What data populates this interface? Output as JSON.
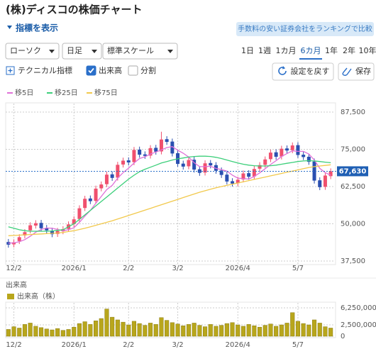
{
  "header": {
    "title": "(株)ディスコの株価チャート",
    "show_indicators": "指標を表示",
    "compare_button": "手数料の安い証券会社をランキングで比較"
  },
  "controls": {
    "dropdowns": [
      "ローソク",
      "日足",
      "標準スケール"
    ],
    "periods": [
      "1日",
      "1週",
      "1カ月",
      "6カ月",
      "1年",
      "2年",
      "10年"
    ],
    "selected_period": 3,
    "technical": "テクニカル指標",
    "checkboxes": [
      {
        "label": "出来高",
        "checked": true
      },
      {
        "label": "分割",
        "checked": false
      }
    ],
    "reset_button": "設定を戻す",
    "save_button": "保存"
  },
  "chart_data": [
    {
      "type": "candlestick",
      "categories": [
        null,
        "12/2",
        null,
        null,
        null,
        null,
        null,
        null,
        null,
        null,
        null,
        null,
        "2026/1",
        null,
        null,
        null,
        null,
        null,
        null,
        null,
        null,
        null,
        "2/2",
        null,
        null,
        null,
        null,
        null,
        null,
        null,
        null,
        "3/2",
        null,
        null,
        null,
        null,
        null,
        null,
        null,
        null,
        null,
        null,
        "2026/4",
        null,
        null,
        null,
        null,
        null,
        null,
        null,
        null,
        null,
        null,
        "5/7",
        null,
        null,
        null,
        null,
        null,
        null
      ],
      "open": [
        43900,
        43100,
        44200,
        46100,
        47800,
        49400,
        50300,
        48600,
        47700,
        46600,
        47500,
        48300,
        49900,
        51600,
        55300,
        58500,
        57700,
        61900,
        63300,
        66600,
        65500,
        69900,
        71300,
        70700,
        74900,
        73300,
        72900,
        75500,
        74300,
        78400,
        77600,
        73700,
        70200,
        69300,
        71500,
        68300,
        67200,
        70400,
        69700,
        67900,
        66500,
        64300,
        63600,
        64900,
        67000,
        65900,
        68500,
        69800,
        71700,
        74000,
        72600,
        75300,
        74700,
        76400,
        73200,
        72500,
        70900,
        64600,
        62400,
        66000
      ],
      "high": [
        44900,
        44800,
        46500,
        48200,
        50500,
        51200,
        51300,
        49600,
        48700,
        48600,
        49200,
        50800,
        52500,
        56200,
        59400,
        59500,
        62800,
        64200,
        67500,
        67600,
        70800,
        72200,
        72300,
        75800,
        75900,
        74300,
        76400,
        76500,
        80900,
        79400,
        78600,
        74700,
        71200,
        72400,
        72500,
        69300,
        71300,
        71400,
        70700,
        68900,
        67500,
        65300,
        65800,
        67900,
        68000,
        69400,
        70700,
        72600,
        74900,
        75000,
        76200,
        76300,
        77300,
        77400,
        74200,
        73500,
        71900,
        65600,
        67200,
        68600
      ],
      "low": [
        42000,
        42100,
        43200,
        45100,
        46800,
        48400,
        47500,
        46800,
        45500,
        45600,
        46500,
        47300,
        48900,
        50600,
        54300,
        56600,
        56700,
        60900,
        62300,
        64400,
        64500,
        68900,
        69600,
        69700,
        72200,
        71800,
        71900,
        73200,
        73300,
        76500,
        72600,
        69100,
        68200,
        68300,
        67200,
        66100,
        66200,
        68600,
        66800,
        65400,
        63200,
        62500,
        62600,
        63900,
        64800,
        64900,
        67500,
        68800,
        70700,
        71500,
        71600,
        73600,
        73700,
        72100,
        71400,
        69800,
        63500,
        61300,
        61400,
        65000
      ],
      "close": [
        43000,
        43800,
        45500,
        47200,
        49500,
        50200,
        48500,
        47800,
        46500,
        47600,
        48200,
        49800,
        51500,
        55200,
        58400,
        57600,
        61800,
        63200,
        66500,
        65400,
        69800,
        71200,
        70600,
        74800,
        73200,
        72800,
        75400,
        74200,
        78300,
        77500,
        73600,
        70100,
        69200,
        71400,
        68200,
        67100,
        70300,
        69600,
        67800,
        66400,
        64200,
        63500,
        64800,
        66900,
        65800,
        68400,
        69700,
        71600,
        73900,
        72500,
        75200,
        74600,
        76300,
        73100,
        72400,
        70800,
        64500,
        62300,
        66200,
        67630
      ],
      "last_label": "67,630",
      "up_color": "#f0506e",
      "down_color": "#2a4fb0",
      "series": [
        {
          "name": "移5日",
          "color": "#e070d8",
          "values": [
            43500,
            43600,
            44000,
            44700,
            45800,
            47200,
            48100,
            48600,
            48500,
            48100,
            47700,
            48000,
            48700,
            50500,
            52600,
            54500,
            56900,
            59200,
            61500,
            62900,
            65300,
            67200,
            68700,
            70400,
            71900,
            72500,
            73400,
            74100,
            74800,
            75600,
            75900,
            74700,
            73700,
            72400,
            70500,
            69200,
            69200,
            69300,
            68600,
            68200,
            67700,
            66300,
            65300,
            65200,
            65000,
            65900,
            67100,
            68500,
            69900,
            71200,
            72600,
            73600,
            74500,
            74300,
            74300,
            73400,
            71400,
            68600,
            67200,
            66300
          ]
        },
        {
          "name": "移25日",
          "color": "#3ccf7a",
          "values": [
            49000,
            48500,
            48000,
            47700,
            47500,
            47500,
            47500,
            47500,
            47600,
            47800,
            48000,
            49000,
            50000,
            51500,
            53000,
            54500,
            56000,
            57500,
            59000,
            60500,
            62000,
            63500,
            65000,
            66300,
            67500,
            68300,
            69000,
            69700,
            70400,
            70900,
            71400,
            71800,
            72100,
            72400,
            72600,
            72700,
            72700,
            72600,
            72300,
            71900,
            71400,
            70900,
            70400,
            70000,
            69700,
            69500,
            69400,
            69400,
            69500,
            69700,
            70000,
            70300,
            70600,
            70900,
            71100,
            71200,
            71100,
            70900,
            70700,
            70500
          ]
        },
        {
          "name": "移75日",
          "color": "#f2c94c",
          "values": [
            46000,
            46100,
            46200,
            46300,
            46400,
            46500,
            46600,
            46700,
            46800,
            46900,
            47100,
            47400,
            47700,
            48100,
            48500,
            49000,
            49500,
            50000,
            50500,
            51000,
            51600,
            52200,
            52800,
            53400,
            54000,
            54600,
            55200,
            55800,
            56400,
            57000,
            57600,
            58200,
            58800,
            59400,
            60000,
            60600,
            61100,
            61600,
            62100,
            62500,
            62900,
            63300,
            63700,
            64100,
            64500,
            64900,
            65300,
            65700,
            66100,
            66500,
            66900,
            67300,
            67700,
            68100,
            68500,
            68900,
            69200,
            69400,
            69600,
            69800
          ]
        }
      ],
      "ylim": [
        37500,
        87500
      ],
      "yticks": [
        {
          "value": 37500,
          "label": "37,500"
        },
        {
          "value": 50000,
          "label": "50,000"
        },
        {
          "value": 62500,
          "label": "62,500"
        },
        {
          "value": 75000,
          "label": "75,000"
        },
        {
          "value": 87500,
          "label": "87,500"
        }
      ],
      "grid": true
    },
    {
      "type": "bar",
      "title": "出来高",
      "categories": [
        null,
        "12/2",
        null,
        null,
        null,
        null,
        null,
        null,
        null,
        null,
        null,
        null,
        "2026/1",
        null,
        null,
        null,
        null,
        null,
        null,
        null,
        null,
        null,
        "2/2",
        null,
        null,
        null,
        null,
        null,
        null,
        null,
        null,
        "3/2",
        null,
        null,
        null,
        null,
        null,
        null,
        null,
        null,
        null,
        null,
        "2026/4",
        null,
        null,
        null,
        null,
        null,
        null,
        null,
        null,
        null,
        null,
        "5/7",
        null,
        null,
        null,
        null,
        null,
        null
      ],
      "series": [
        {
          "name": "出来高（株）",
          "color": "#b8a61c",
          "values": [
            1500000,
            2100000,
            1800000,
            2600000,
            2900000,
            2200000,
            1900000,
            1600000,
            1400000,
            1700000,
            1300000,
            1500000,
            2000000,
            2800000,
            3200000,
            2600000,
            3400000,
            3900000,
            6000000,
            4200000,
            3600000,
            3100000,
            2500000,
            3300000,
            2800000,
            2400000,
            2900000,
            2600000,
            4100000,
            3500000,
            3000000,
            2700000,
            2300000,
            2600000,
            2900000,
            2400000,
            2100000,
            2600000,
            2200000,
            2400000,
            2800000,
            3000000,
            2500000,
            2200000,
            2600000,
            2300000,
            2000000,
            2400000,
            2700000,
            2200000,
            2500000,
            2900000,
            5200000,
            3300000,
            2800000,
            2500000,
            3600000,
            2900000,
            2100000,
            1800000
          ]
        }
      ],
      "ylim": [
        0,
        6250000
      ],
      "yticks": [
        0,
        {
          "value": 2500000,
          "label": "2,500,000"
        },
        {
          "value": 6250000,
          "label": "6,250,000"
        }
      ],
      "grid": true
    }
  ]
}
